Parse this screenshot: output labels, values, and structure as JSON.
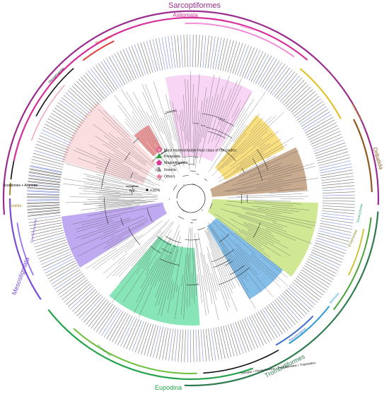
{
  "outer_clades": {
    "sarcoptiformes": "Sarcoptiformes",
    "trombidiformes": "Trombidiformes"
  },
  "clade_labels": {
    "astigmata": "Astigmata",
    "oribatida": "Oribatida",
    "eupodina": "Eupodina",
    "mesostigmata": "Mesostigmata",
    "scorpiones_araneae": "Scorpiones + Araneae",
    "ixodida": "Ixodida",
    "tydeoidea_group": "Tydeidae + Paratydeoidea + Penthaleoidea + Tropidoidea",
    "eriophyidae": "Eriophyidae",
    "acaridida": "Acaridida",
    "psoroptidia": "Psoroptidia",
    "glycyphagidae": "Glycyphagidae",
    "brachypylina": "Brachypylina",
    "tetranychidae": "Tetranychidae",
    "bdellidae": "Bdellidae",
    "parasitengona": "Parasitengona",
    "prostigmata": "Prostigmata",
    "dermanyssoidea": "Dermanyssoidea"
  },
  "legend": {
    "title": "Most representative Host class of the clades:",
    "items": [
      {
        "label": "Pinopsida",
        "color": "#2e9e3e",
        "shape": "triangle"
      },
      {
        "label": "Magnoliopsida",
        "color": "#d63b9b",
        "shape": "pentagon"
      },
      {
        "label": "Insecta",
        "color": "#8a8a8a",
        "shape": "bug"
      },
      {
        "label": "Others",
        "color": "#ea7a90",
        "shape": "star"
      }
    ]
  },
  "scale": {
    "bar": "0.2",
    "support": ">70%"
  },
  "colors": {
    "sarcoptiformes": "#9b2d8e",
    "astigmata": "#d72f9a",
    "trombidiformes": "#2f7a4f",
    "mesostigmata": "#7b4ddb",
    "oribatida": "#8c5a1f",
    "eupodina": "#22a34a",
    "ixodida": "#a78a2c"
  }
}
